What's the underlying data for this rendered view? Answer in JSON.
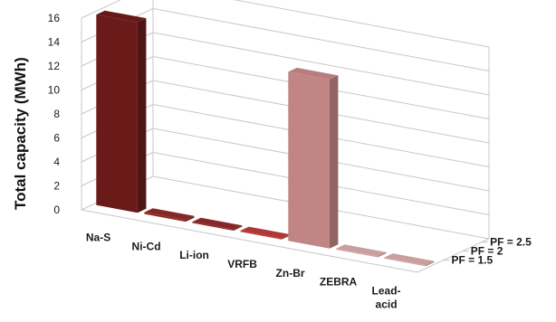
{
  "chart_data": {
    "type": "bar",
    "title": "",
    "xlabel": "",
    "ylabel": "Total capacity (MWh)",
    "ylim": [
      0,
      16
    ],
    "yticks": [
      "0",
      "2",
      "4",
      "6",
      "8",
      "10",
      "12",
      "14",
      "16"
    ],
    "categories": [
      "Na-S",
      "Ni-Cd",
      "Li-ion",
      "VRFB",
      "Zn-Br",
      "ZEBRA",
      "Lead-acid"
    ],
    "category_labels": [
      [
        "Na-S"
      ],
      [
        "Ni-Cd"
      ],
      [
        "Li-ion"
      ],
      [
        "VRFB"
      ],
      [
        "Zn-Br"
      ],
      [
        "ZEBRA"
      ],
      [
        "Lead-",
        "acid"
      ]
    ],
    "series_labels": [
      "PF = 1.5",
      "PF = 2",
      "PF = 2.5"
    ],
    "bar_colors": [
      "#6b1a1a",
      "#8e2a2a",
      "#8e2a2a",
      "#b83a3a",
      "#c28585",
      "#d3a7a7",
      "#d3a7a7"
    ],
    "values": [
      15.9,
      0.15,
      0.1,
      0.1,
      14.1,
      0.1,
      0.1
    ],
    "grid": true
  }
}
